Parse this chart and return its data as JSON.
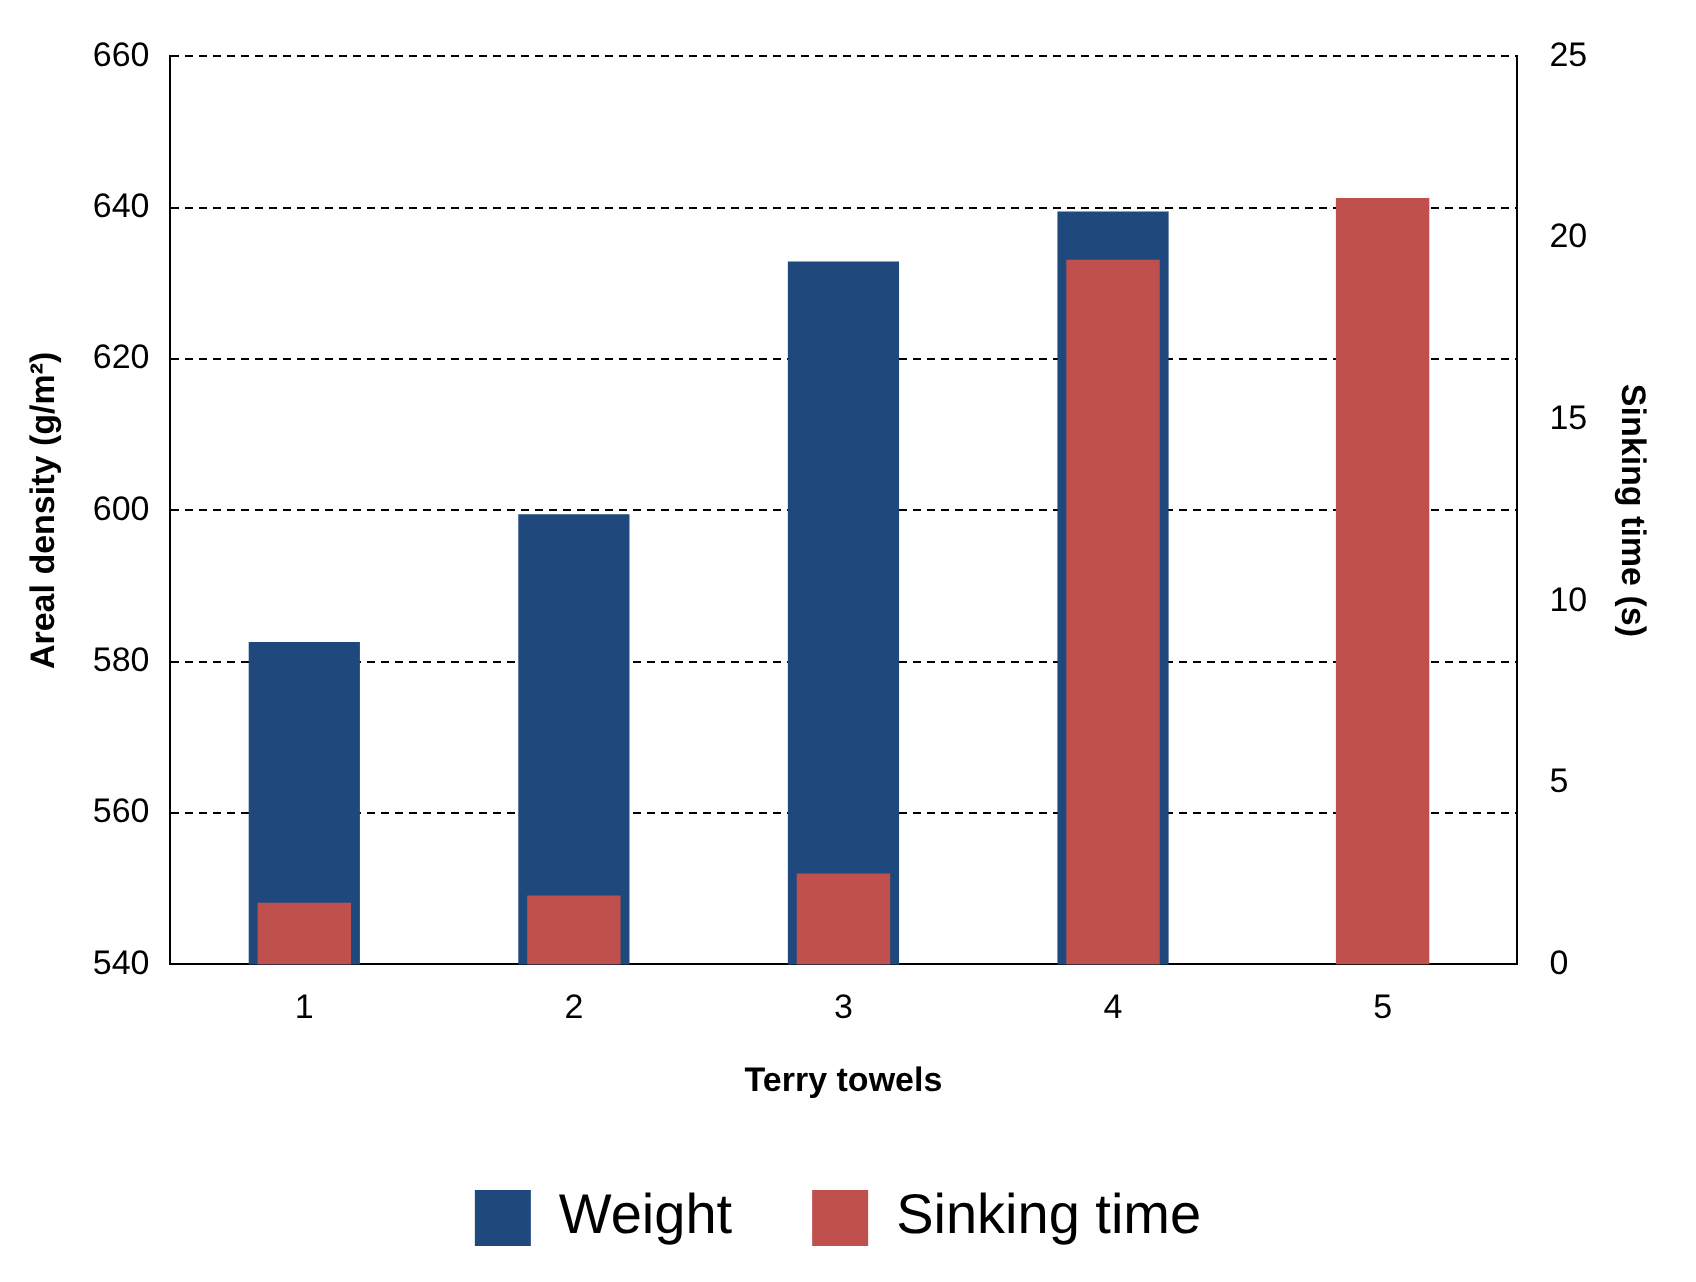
{
  "chart_data": {
    "type": "bar",
    "xlabel": "Terry towels",
    "ylabel": "Areal density (g/m²)",
    "y2label": "Sinking time (s)",
    "categories": [
      "1",
      "2",
      "3",
      "4",
      "5"
    ],
    "series": [
      {
        "name": "Weight",
        "color": "#1f497d",
        "values": [
          582.6,
          599.5,
          632.9,
          639.5,
          null
        ]
      },
      {
        "name": "Sinking time",
        "color": "#c0504d",
        "axis": "y2",
        "values": [
          1.7,
          1.9,
          2.5,
          19.4,
          21.1
        ]
      }
    ],
    "ylim": [
      540,
      660
    ],
    "yticks": [
      540,
      560,
      580,
      600,
      620,
      640,
      660
    ],
    "y2lim": [
      0,
      25
    ],
    "y2ticks": [
      0,
      5,
      10,
      15,
      20,
      25
    ],
    "grid": "y",
    "legend": "bottom"
  }
}
